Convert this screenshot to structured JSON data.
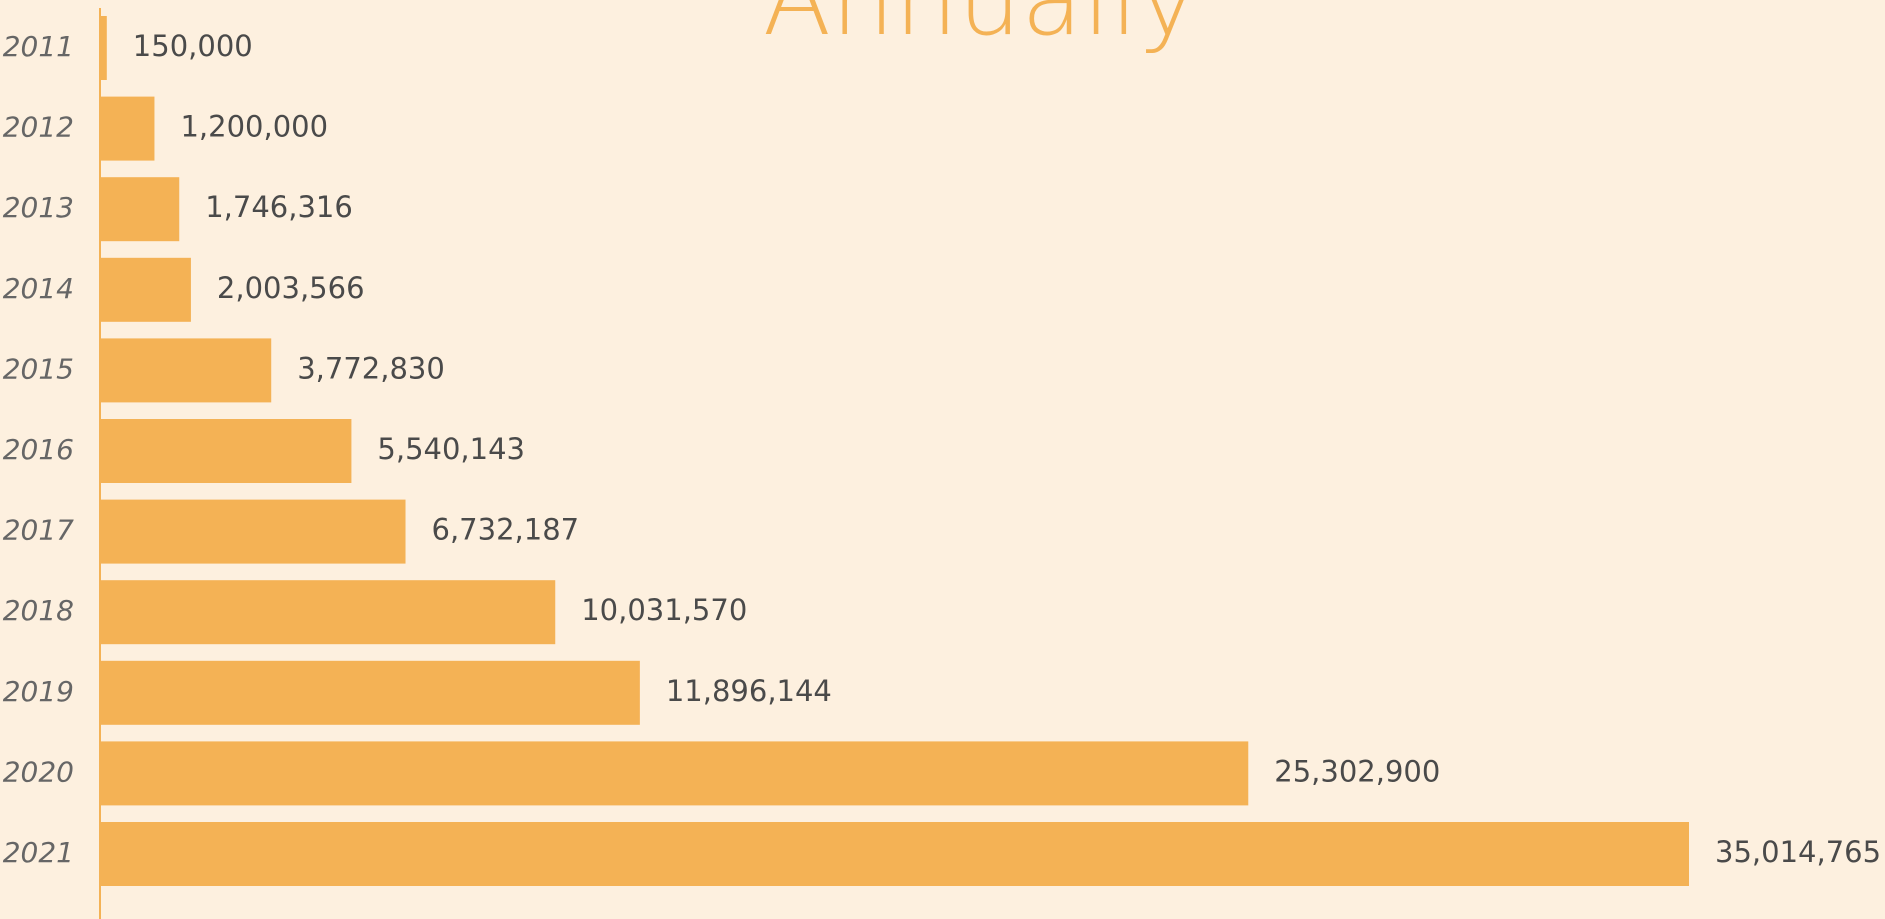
{
  "chart_data": {
    "type": "bar",
    "orientation": "horizontal",
    "title": "Annually",
    "categories": [
      "2011",
      "2012",
      "2013",
      "2014",
      "2015",
      "2016",
      "2017",
      "2018",
      "2019",
      "2020",
      "2021"
    ],
    "values": [
      150000,
      1200000,
      1746316,
      2003566,
      3772830,
      5540143,
      6732187,
      10031570,
      11896144,
      25302900,
      35014765
    ],
    "value_labels": [
      "150,000",
      "1,200,000",
      "1,746,316",
      "2,003,566",
      "3,772,830",
      "5,540,143",
      "6,732,187",
      "10,031,570",
      "11,896,144",
      "25,302,900",
      "35,014,765"
    ],
    "color": "#f4b255"
  }
}
